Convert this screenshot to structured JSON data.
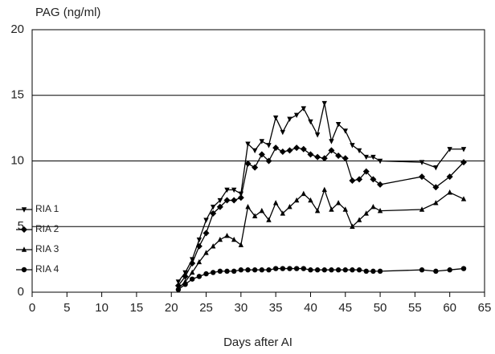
{
  "chart_data": {
    "type": "line",
    "y_label": "PAG (ng/ml)",
    "x_label": "Days after AI",
    "x": [
      21,
      22,
      23,
      24,
      25,
      26,
      27,
      28,
      29,
      30,
      31,
      32,
      33,
      34,
      35,
      36,
      37,
      38,
      39,
      40,
      41,
      42,
      43,
      44,
      45,
      46,
      47,
      48,
      49,
      50,
      56,
      58,
      60,
      62
    ],
    "xlim": [
      0,
      65
    ],
    "xticks": [
      0,
      5,
      10,
      15,
      20,
      25,
      30,
      35,
      40,
      45,
      50,
      55,
      60,
      65
    ],
    "ylim": [
      0,
      20
    ],
    "yticks": [
      0,
      5,
      10,
      15,
      20
    ],
    "grid": true,
    "legend": "left",
    "series": [
      {
        "name": "RIA 1",
        "color": "#000000",
        "marker": "triangle-down",
        "values": [
          0.8,
          1.5,
          2.5,
          4,
          5.5,
          6.5,
          7,
          7.8,
          7.8,
          7.5,
          11.3,
          10.8,
          11.5,
          11.2,
          13.3,
          12.2,
          13.2,
          13.5,
          14,
          13,
          12,
          14.4,
          11.5,
          12.8,
          12.3,
          11.2,
          10.8,
          10.3,
          10.3,
          10,
          9.9,
          9.5,
          10.9,
          10.9
        ]
      },
      {
        "name": "RIA 2",
        "color": "#000000",
        "marker": "diamond",
        "values": [
          0.5,
          1.2,
          2.2,
          3.5,
          4.5,
          6,
          6.5,
          7,
          7,
          7.2,
          9.8,
          9.5,
          10.5,
          10,
          11,
          10.7,
          10.8,
          11,
          10.9,
          10.5,
          10.3,
          10.2,
          10.8,
          10.4,
          10.2,
          8.5,
          8.6,
          9.2,
          8.6,
          8.2,
          8.8,
          8,
          8.8,
          9.9
        ]
      },
      {
        "name": "RIA 3",
        "color": "#000000",
        "marker": "triangle",
        "values": [
          0.3,
          0.8,
          1.5,
          2.3,
          3,
          3.5,
          4,
          4.3,
          4,
          3.6,
          6.5,
          5.8,
          6.2,
          5.5,
          6.8,
          6,
          6.5,
          7,
          7.5,
          7,
          6.2,
          7.8,
          6.3,
          6.8,
          6.3,
          5,
          5.5,
          6,
          6.5,
          6.2,
          6.3,
          6.8,
          7.6,
          7.1
        ]
      },
      {
        "name": "RIA 4",
        "color": "#000000",
        "marker": "circle",
        "values": [
          0.2,
          0.6,
          1,
          1.2,
          1.4,
          1.5,
          1.6,
          1.6,
          1.6,
          1.7,
          1.7,
          1.7,
          1.7,
          1.7,
          1.8,
          1.8,
          1.8,
          1.8,
          1.8,
          1.7,
          1.7,
          1.7,
          1.7,
          1.7,
          1.7,
          1.7,
          1.7,
          1.6,
          1.6,
          1.6,
          1.7,
          1.6,
          1.7,
          1.8
        ]
      }
    ]
  }
}
